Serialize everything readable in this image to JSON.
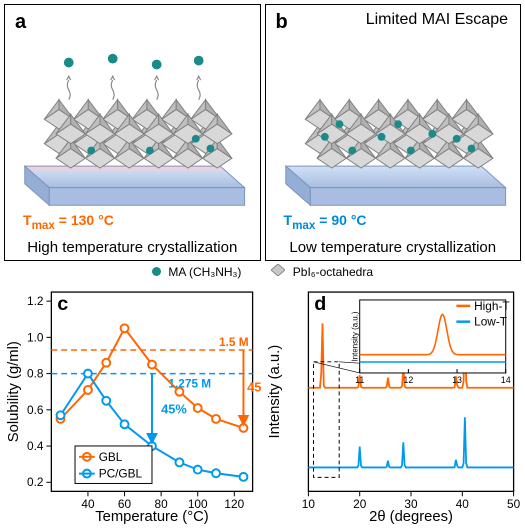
{
  "panels": {
    "a": {
      "label": "a",
      "temp_text": "T",
      "temp_sub": "max",
      "temp_val": " = 130 °C",
      "temp_color": "#ff6600",
      "caption": "High temperature crystallization"
    },
    "b": {
      "label": "b",
      "title": "Limited MAI Escape",
      "temp_text": "T",
      "temp_sub": "max",
      "temp_val": " = 90 °C",
      "temp_color": "#0088dd",
      "caption": "Low temperature crystallization"
    },
    "c": {
      "label": "c",
      "xlabel": "Temperature (°C)",
      "ylabel": "Solubility (g/ml)",
      "xlim": [
        20,
        130
      ],
      "ylim": [
        0.15,
        1.25
      ],
      "xticks": [
        40,
        60,
        80,
        100,
        120
      ],
      "yticks": [
        0.2,
        0.4,
        0.6,
        0.8,
        1.0,
        1.2
      ],
      "series": {
        "GBL": {
          "color": "#ff6600",
          "label": "GBL",
          "points": [
            [
              25,
              0.55
            ],
            [
              40,
              0.71
            ],
            [
              50,
              0.86
            ],
            [
              60,
              1.05
            ],
            [
              75,
              0.85
            ],
            [
              90,
              0.7
            ],
            [
              100,
              0.61
            ],
            [
              110,
              0.55
            ],
            [
              125,
              0.5
            ]
          ]
        },
        "PCGBL": {
          "color": "#0099ee",
          "label": "PC/GBL",
          "points": [
            [
              25,
              0.57
            ],
            [
              40,
              0.8
            ],
            [
              50,
              0.65
            ],
            [
              60,
              0.52
            ],
            [
              75,
              0.4
            ],
            [
              90,
              0.31
            ],
            [
              100,
              0.27
            ],
            [
              110,
              0.25
            ],
            [
              125,
              0.23
            ]
          ]
        }
      },
      "dashed": {
        "m15": {
          "y": 0.93,
          "label": "1.5 M",
          "color": "#ff6600"
        },
        "m1275": {
          "y": 0.8,
          "label": "1.275 M",
          "color": "#0099ee"
        }
      },
      "pct_label": "45%",
      "label_fontsize": 15,
      "tick_fontsize": 12
    },
    "d": {
      "label": "d",
      "xlabel": "2θ (degrees)",
      "ylabel": "Intensity (a.u.)",
      "xlim": [
        10,
        50
      ],
      "xticks": [
        10,
        20,
        30,
        40,
        50
      ],
      "series": {
        "HighT": {
          "color": "#ff6600",
          "label": "High-T",
          "peaks": [
            [
              12.7,
              0.85
            ],
            [
              20,
              0.15
            ],
            [
              25.5,
              0.12
            ],
            [
              28.5,
              0.25
            ],
            [
              38.8,
              0.15
            ],
            [
              40.5,
              0.95
            ]
          ]
        },
        "LowT": {
          "color": "#0099ee",
          "label": "Low-T",
          "peaks": [
            [
              20,
              0.25
            ],
            [
              25.5,
              0.08
            ],
            [
              28.5,
              0.3
            ],
            [
              38.8,
              0.1
            ],
            [
              40.5,
              0.6
            ]
          ]
        }
      },
      "inset": {
        "xlim": [
          11,
          14
        ],
        "xticks": [
          11,
          12,
          13,
          14
        ],
        "ylabel": "Intensity (a.u.)"
      }
    }
  },
  "legend": {
    "ma": {
      "label": "MA (CH₃NH₃)",
      "color": "#1a8b8b"
    },
    "octa": {
      "label": "PbI₆-octahedra",
      "color": "#aaaaaa"
    }
  },
  "colors": {
    "substrate_top": "#b8ccee",
    "substrate_bottom": "#9fb8e0",
    "heat_glow": "#ffb0b0",
    "octa_fill": "#cccccc",
    "octa_stroke": "#888888",
    "mai": "#1a8b8b"
  }
}
